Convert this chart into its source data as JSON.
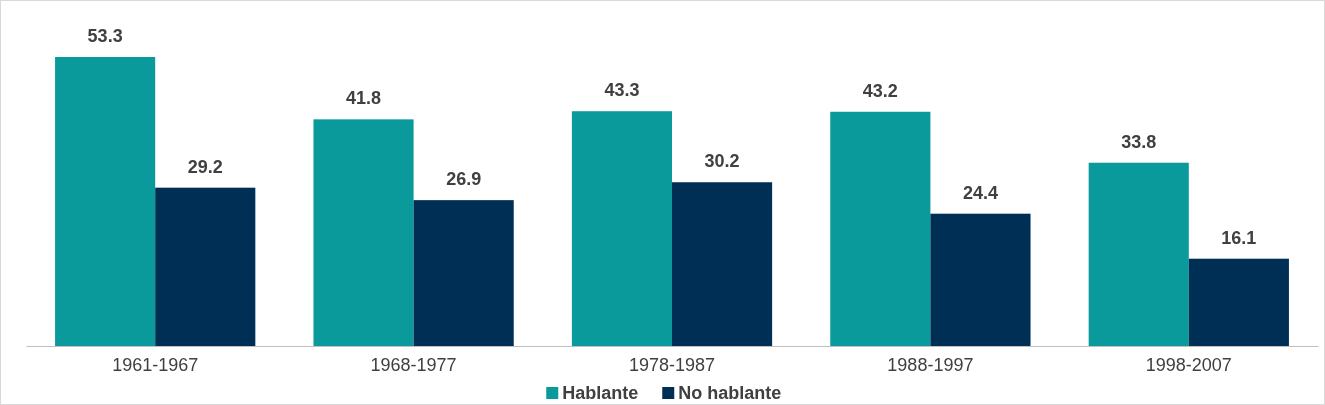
{
  "chart_data": {
    "type": "bar",
    "categories": [
      "1961-1967",
      "1968-1977",
      "1978-1987",
      "1988-1997",
      "1998-2007"
    ],
    "series": [
      {
        "name": "Hablante",
        "color": "#0a9a9c",
        "values": [
          53.3,
          41.8,
          43.3,
          43.2,
          33.8
        ]
      },
      {
        "name": "No hablante",
        "color": "#002f56",
        "values": [
          29.2,
          26.9,
          30.2,
          24.4,
          16.1
        ]
      }
    ],
    "data_labels": true,
    "legend": "bottom",
    "grid": false
  }
}
